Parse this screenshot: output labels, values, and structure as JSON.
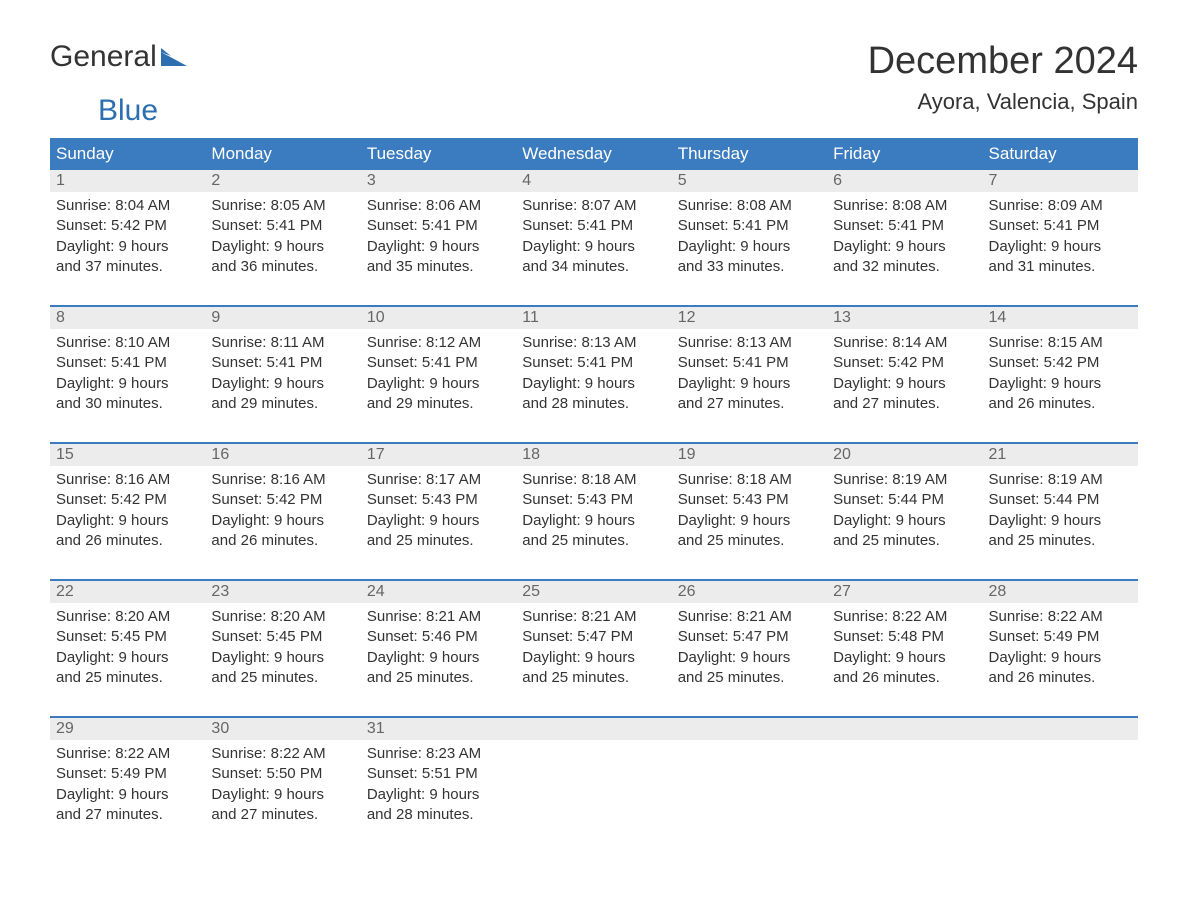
{
  "brand": {
    "part1": "General",
    "part2": "Blue"
  },
  "title": "December 2024",
  "location": "Ayora, Valencia, Spain",
  "colors": {
    "header_bg": "#3b7bbf",
    "header_text": "#ffffff",
    "daynum_bg": "#ececec",
    "daynum_text": "#666666",
    "body_text": "#333333",
    "brand_blue": "#2b6fb0",
    "page_bg": "#ffffff"
  },
  "fonts": {
    "title_size": 38,
    "location_size": 22,
    "dayhead_size": 17,
    "daynum_size": 16,
    "cell_size": 15
  },
  "day_headers": [
    "Sunday",
    "Monday",
    "Tuesday",
    "Wednesday",
    "Thursday",
    "Friday",
    "Saturday"
  ],
  "weeks": [
    [
      {
        "n": "1",
        "sunrise": "Sunrise: 8:04 AM",
        "sunset": "Sunset: 5:42 PM",
        "d1": "Daylight: 9 hours",
        "d2": "and 37 minutes."
      },
      {
        "n": "2",
        "sunrise": "Sunrise: 8:05 AM",
        "sunset": "Sunset: 5:41 PM",
        "d1": "Daylight: 9 hours",
        "d2": "and 36 minutes."
      },
      {
        "n": "3",
        "sunrise": "Sunrise: 8:06 AM",
        "sunset": "Sunset: 5:41 PM",
        "d1": "Daylight: 9 hours",
        "d2": "and 35 minutes."
      },
      {
        "n": "4",
        "sunrise": "Sunrise: 8:07 AM",
        "sunset": "Sunset: 5:41 PM",
        "d1": "Daylight: 9 hours",
        "d2": "and 34 minutes."
      },
      {
        "n": "5",
        "sunrise": "Sunrise: 8:08 AM",
        "sunset": "Sunset: 5:41 PM",
        "d1": "Daylight: 9 hours",
        "d2": "and 33 minutes."
      },
      {
        "n": "6",
        "sunrise": "Sunrise: 8:08 AM",
        "sunset": "Sunset: 5:41 PM",
        "d1": "Daylight: 9 hours",
        "d2": "and 32 minutes."
      },
      {
        "n": "7",
        "sunrise": "Sunrise: 8:09 AM",
        "sunset": "Sunset: 5:41 PM",
        "d1": "Daylight: 9 hours",
        "d2": "and 31 minutes."
      }
    ],
    [
      {
        "n": "8",
        "sunrise": "Sunrise: 8:10 AM",
        "sunset": "Sunset: 5:41 PM",
        "d1": "Daylight: 9 hours",
        "d2": "and 30 minutes."
      },
      {
        "n": "9",
        "sunrise": "Sunrise: 8:11 AM",
        "sunset": "Sunset: 5:41 PM",
        "d1": "Daylight: 9 hours",
        "d2": "and 29 minutes."
      },
      {
        "n": "10",
        "sunrise": "Sunrise: 8:12 AM",
        "sunset": "Sunset: 5:41 PM",
        "d1": "Daylight: 9 hours",
        "d2": "and 29 minutes."
      },
      {
        "n": "11",
        "sunrise": "Sunrise: 8:13 AM",
        "sunset": "Sunset: 5:41 PM",
        "d1": "Daylight: 9 hours",
        "d2": "and 28 minutes."
      },
      {
        "n": "12",
        "sunrise": "Sunrise: 8:13 AM",
        "sunset": "Sunset: 5:41 PM",
        "d1": "Daylight: 9 hours",
        "d2": "and 27 minutes."
      },
      {
        "n": "13",
        "sunrise": "Sunrise: 8:14 AM",
        "sunset": "Sunset: 5:42 PM",
        "d1": "Daylight: 9 hours",
        "d2": "and 27 minutes."
      },
      {
        "n": "14",
        "sunrise": "Sunrise: 8:15 AM",
        "sunset": "Sunset: 5:42 PM",
        "d1": "Daylight: 9 hours",
        "d2": "and 26 minutes."
      }
    ],
    [
      {
        "n": "15",
        "sunrise": "Sunrise: 8:16 AM",
        "sunset": "Sunset: 5:42 PM",
        "d1": "Daylight: 9 hours",
        "d2": "and 26 minutes."
      },
      {
        "n": "16",
        "sunrise": "Sunrise: 8:16 AM",
        "sunset": "Sunset: 5:42 PM",
        "d1": "Daylight: 9 hours",
        "d2": "and 26 minutes."
      },
      {
        "n": "17",
        "sunrise": "Sunrise: 8:17 AM",
        "sunset": "Sunset: 5:43 PM",
        "d1": "Daylight: 9 hours",
        "d2": "and 25 minutes."
      },
      {
        "n": "18",
        "sunrise": "Sunrise: 8:18 AM",
        "sunset": "Sunset: 5:43 PM",
        "d1": "Daylight: 9 hours",
        "d2": "and 25 minutes."
      },
      {
        "n": "19",
        "sunrise": "Sunrise: 8:18 AM",
        "sunset": "Sunset: 5:43 PM",
        "d1": "Daylight: 9 hours",
        "d2": "and 25 minutes."
      },
      {
        "n": "20",
        "sunrise": "Sunrise: 8:19 AM",
        "sunset": "Sunset: 5:44 PM",
        "d1": "Daylight: 9 hours",
        "d2": "and 25 minutes."
      },
      {
        "n": "21",
        "sunrise": "Sunrise: 8:19 AM",
        "sunset": "Sunset: 5:44 PM",
        "d1": "Daylight: 9 hours",
        "d2": "and 25 minutes."
      }
    ],
    [
      {
        "n": "22",
        "sunrise": "Sunrise: 8:20 AM",
        "sunset": "Sunset: 5:45 PM",
        "d1": "Daylight: 9 hours",
        "d2": "and 25 minutes."
      },
      {
        "n": "23",
        "sunrise": "Sunrise: 8:20 AM",
        "sunset": "Sunset: 5:45 PM",
        "d1": "Daylight: 9 hours",
        "d2": "and 25 minutes."
      },
      {
        "n": "24",
        "sunrise": "Sunrise: 8:21 AM",
        "sunset": "Sunset: 5:46 PM",
        "d1": "Daylight: 9 hours",
        "d2": "and 25 minutes."
      },
      {
        "n": "25",
        "sunrise": "Sunrise: 8:21 AM",
        "sunset": "Sunset: 5:47 PM",
        "d1": "Daylight: 9 hours",
        "d2": "and 25 minutes."
      },
      {
        "n": "26",
        "sunrise": "Sunrise: 8:21 AM",
        "sunset": "Sunset: 5:47 PM",
        "d1": "Daylight: 9 hours",
        "d2": "and 25 minutes."
      },
      {
        "n": "27",
        "sunrise": "Sunrise: 8:22 AM",
        "sunset": "Sunset: 5:48 PM",
        "d1": "Daylight: 9 hours",
        "d2": "and 26 minutes."
      },
      {
        "n": "28",
        "sunrise": "Sunrise: 8:22 AM",
        "sunset": "Sunset: 5:49 PM",
        "d1": "Daylight: 9 hours",
        "d2": "and 26 minutes."
      }
    ],
    [
      {
        "n": "29",
        "sunrise": "Sunrise: 8:22 AM",
        "sunset": "Sunset: 5:49 PM",
        "d1": "Daylight: 9 hours",
        "d2": "and 27 minutes."
      },
      {
        "n": "30",
        "sunrise": "Sunrise: 8:22 AM",
        "sunset": "Sunset: 5:50 PM",
        "d1": "Daylight: 9 hours",
        "d2": "and 27 minutes."
      },
      {
        "n": "31",
        "sunrise": "Sunrise: 8:23 AM",
        "sunset": "Sunset: 5:51 PM",
        "d1": "Daylight: 9 hours",
        "d2": "and 28 minutes."
      },
      null,
      null,
      null,
      null
    ]
  ]
}
